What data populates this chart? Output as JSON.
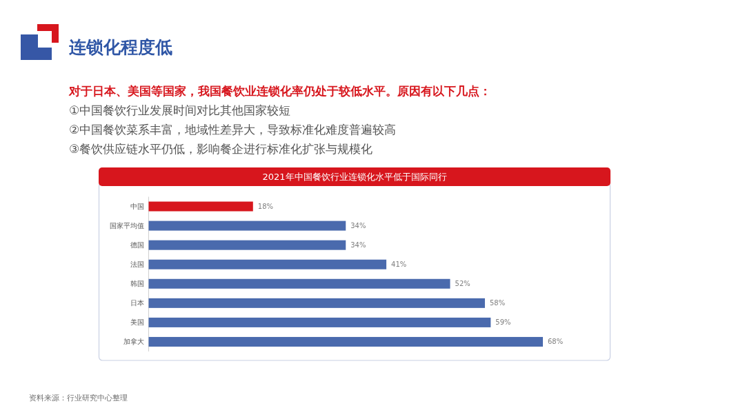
{
  "chart_data": {
    "type": "bar",
    "orientation": "horizontal",
    "title": "连锁化程度低",
    "subtitle": "对于日本、美国等国家，我国餐饮业连锁化率仍处于较低水平。原因有以下几点：",
    "annotations": [
      "①中国餐饮行业发展时间对比其他国家较短",
      "②中国餐饮菜系丰富，地域性差异大，导致标准化难度普遍较高",
      "③餐饮供应链水平仍低，影响餐企进行标准化扩张与规模化",
      "2021年中国餐饮行业连锁化水平低于国际同行",
      "资料来源：行业研究中心整理"
    ],
    "categories": [
      "中国",
      "国家平均值",
      "德国",
      "法国",
      "韩国",
      "日本",
      "美国",
      "加拿大"
    ],
    "values": [
      18,
      34,
      34,
      41,
      52,
      58,
      59,
      68
    ],
    "value_labels": [
      "18%",
      "34%",
      "34%",
      "41%",
      "52%",
      "58%",
      "59%",
      "68%"
    ],
    "colors": [
      "#d7161d",
      "#4a6aad",
      "#4a6aad",
      "#4a6aad",
      "#4a6aad",
      "#4a6aad",
      "#4a6aad",
      "#4a6aad"
    ]
  }
}
